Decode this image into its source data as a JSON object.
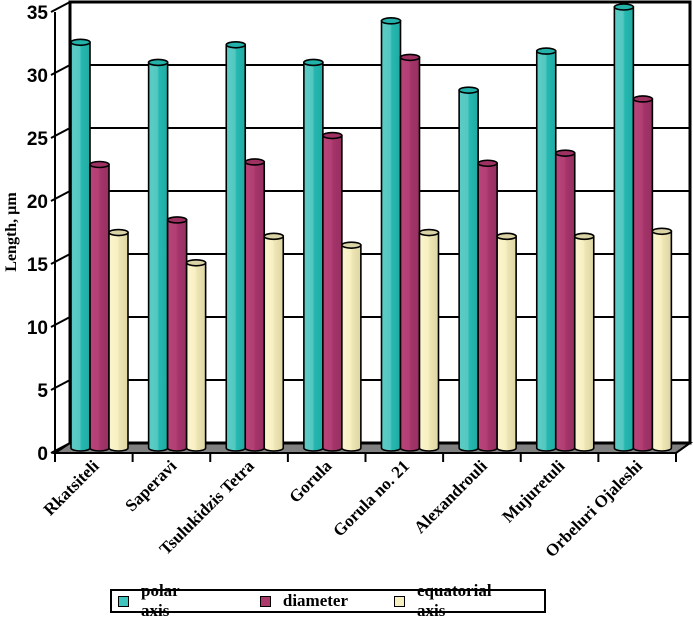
{
  "chart_data": {
    "type": "bar",
    "style": "3d-cylinder-clustered",
    "title": "",
    "xlabel": "",
    "ylabel": "Length, µm",
    "ylim": [
      0,
      35
    ],
    "yticks": [
      0,
      5,
      10,
      15,
      20,
      25,
      30,
      35
    ],
    "grid": true,
    "legend_position": "bottom",
    "categories": [
      "Rkatsiteli",
      "Saperavi",
      "Tsulukidzis Tetra",
      "Gorula",
      "Gorula no. 21",
      "Alexandrouli",
      "Mujuretuli",
      "Orbeluri Ojaleshi"
    ],
    "series": [
      {
        "name": "polar axis",
        "color": "#2fbdb5",
        "values": [
          32.2,
          30.6,
          32.0,
          30.6,
          33.9,
          28.4,
          31.5,
          35.0
        ]
      },
      {
        "name": "diameter",
        "color": "#ac3a6b",
        "values": [
          22.5,
          18.1,
          22.7,
          24.8,
          31.0,
          22.6,
          23.4,
          27.7
        ]
      },
      {
        "name": "equatorial axis",
        "color": "#f6efc0",
        "values": [
          17.1,
          14.7,
          16.8,
          16.1,
          17.1,
          16.8,
          16.8,
          17.2
        ]
      }
    ]
  }
}
